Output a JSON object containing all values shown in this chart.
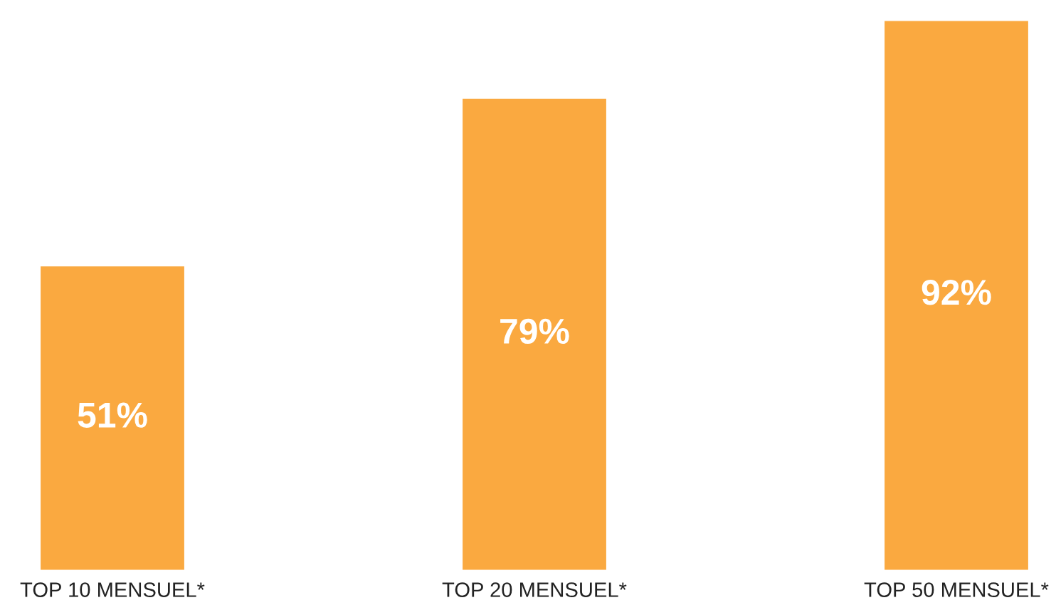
{
  "chart_data": {
    "type": "bar",
    "categories": [
      "TOP 10 MENSUEL*",
      "TOP 20 MENSUEL*",
      "TOP 50 MENSUEL*"
    ],
    "values": [
      51,
      79,
      92
    ],
    "value_labels": [
      "51%",
      "79%",
      "92%"
    ],
    "color": "#faa940",
    "legend": false
  }
}
